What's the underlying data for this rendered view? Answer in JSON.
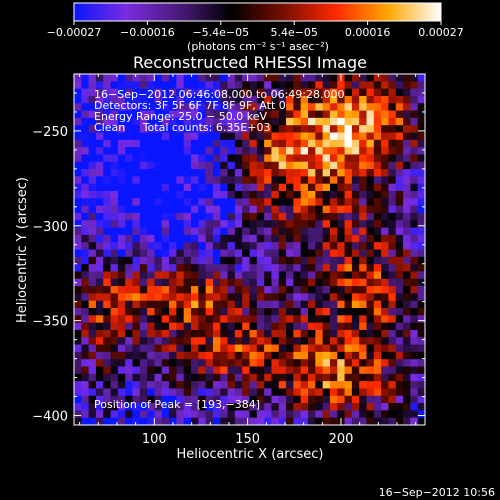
{
  "chart_data": {
    "type": "heatmap",
    "title": "Reconstructed RHESSI Image",
    "xlabel": "Heliocentric X (arcsec)",
    "ylabel": "Heliocentric Y (arcsec)",
    "xlim": [
      57,
      245
    ],
    "ylim": [
      -405,
      -220
    ],
    "x_ticks": [
      100,
      150,
      200
    ],
    "y_ticks": [
      -250,
      -300,
      -350,
      -400
    ],
    "x_tick_labels": [
      "100",
      "150",
      "200"
    ],
    "y_tick_labels": [
      "−250",
      "−300",
      "−350",
      "−400"
    ],
    "colorbar": {
      "ticks": [
        -0.00027,
        -0.00016,
        -5.4e-05,
        5.4e-05,
        0.00016,
        0.00027
      ],
      "tick_labels": [
        "−0.00027",
        "−0.00016",
        "−5.4e−05",
        "5.4e−05",
        "0.00016",
        "0.00027"
      ],
      "units": "(photons cm⁻² s⁻¹ asec⁻²)",
      "colormap": [
        "#0a16ff",
        "#7a2ce0",
        "#4a1a7a",
        "#000000",
        "#7a0e00",
        "#ff2a00",
        "#ffa800",
        "#ffffff"
      ]
    },
    "annotations": [
      "16−Sep−2012 06:46:08.000 to 06:49:28.000",
      "Detectors: 3F 5F 6F 7F 8F 9F, Att 0",
      "Energy Range: 25.0 − 50.0 keV",
      "Clean     Total counts: 6.35E+03"
    ],
    "peak_label": "Position of Peak = [193,−384]",
    "footer_date": "16−Sep−2012 10:56",
    "grid": false
  }
}
